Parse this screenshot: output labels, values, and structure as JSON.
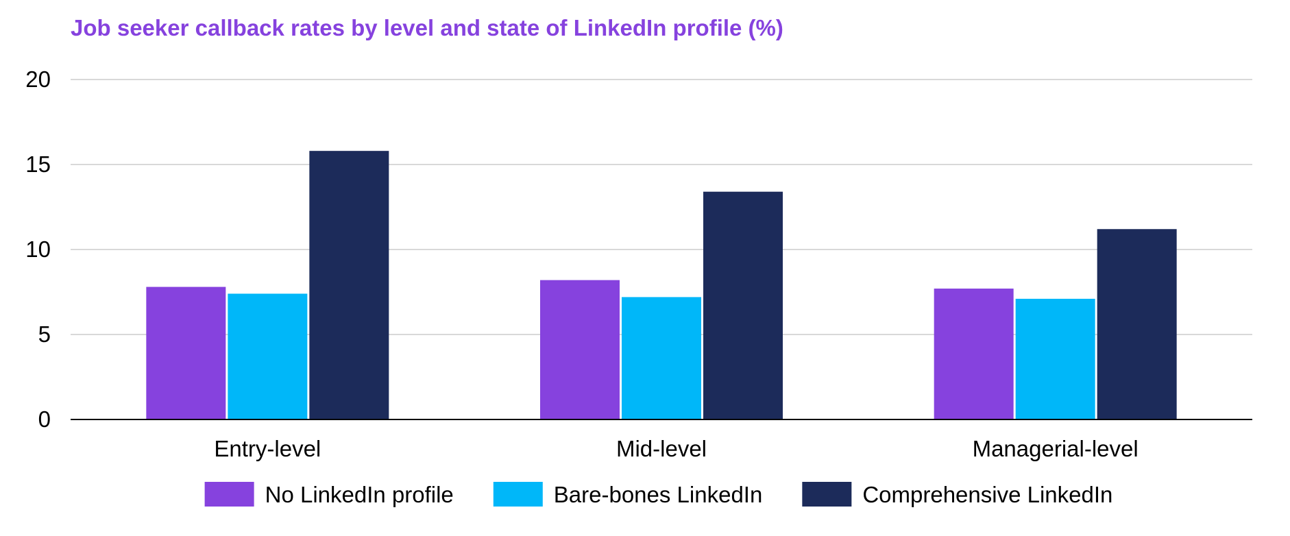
{
  "chart_data": {
    "type": "bar",
    "title": "Job seeker callback rates by level and state of LinkedIn profile (%)",
    "title_color": "#8642DE",
    "categories": [
      "Entry-level",
      "Mid-level",
      "Managerial-level"
    ],
    "series": [
      {
        "name": "No LinkedIn profile",
        "color": "#8642DE",
        "values": [
          7.8,
          8.2,
          7.7
        ]
      },
      {
        "name": "Bare-bones LinkedIn",
        "color": "#00B7F9",
        "values": [
          7.4,
          7.2,
          7.1
        ]
      },
      {
        "name": "Comprehensive LinkedIn",
        "color": "#1C2B5A",
        "values": [
          15.8,
          13.4,
          11.2
        ]
      }
    ],
    "yticks": [
      "0",
      "5",
      "10",
      "15",
      "20"
    ],
    "ylim": [
      0,
      20
    ],
    "xlabel": "",
    "ylabel": "",
    "grid": true,
    "legend_position": "bottom"
  }
}
